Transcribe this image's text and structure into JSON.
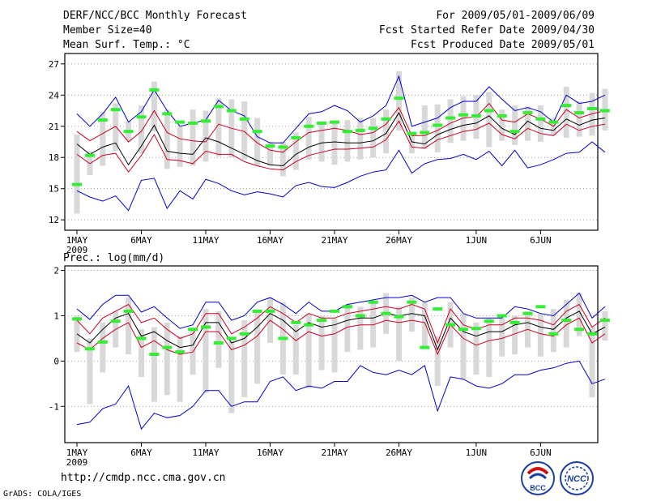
{
  "header": {
    "title": "DERF/NCC/BCC Monthly Forecast",
    "member_size": "Member Size=40",
    "variable": "Mean Surf. Temp.: °C",
    "period": "For 2009/05/01-2009/06/09",
    "refer_date": "Fcst Started Refer Date 2009/04/30",
    "produced_date": "Fcst Produced Date 2009/05/01"
  },
  "footer": {
    "url": "http://cmdp.ncc.cma.gov.cn",
    "credit": "GrADS: COLA/IGES",
    "logo_left_text": "BCC",
    "logo_right_text": "NCC"
  },
  "colors": {
    "envelope": "#0000cc",
    "spread": "#cc0022",
    "mean": "#000000",
    "box": "#d8d8d8",
    "obs": "#33ee33"
  },
  "chart_data": [
    {
      "type": "line",
      "title": "Mean Surf. Temp.: °C",
      "x_start_day": 1,
      "x_tick_labels": [
        "1MAY",
        "6MAY",
        "11MAY",
        "16MAY",
        "21MAY",
        "26MAY",
        "1JUN",
        "6JUN"
      ],
      "x_tick_days": [
        1,
        6,
        11,
        16,
        21,
        26,
        32,
        37
      ],
      "year_label": "2009",
      "ylim": [
        11,
        28
      ],
      "y_ticks": [
        12,
        15,
        18,
        21,
        24,
        27
      ],
      "y_tick_labels": [
        "12",
        "15",
        "18",
        "21",
        "24",
        "27"
      ],
      "series": [
        {
          "name": "max",
          "values": [
            22.2,
            21.0,
            22.2,
            23.8,
            21.4,
            22.4,
            24.5,
            22.5,
            21.0,
            21.3,
            21.6,
            23.5,
            22.5,
            22.0,
            20.0,
            19.4,
            19.4,
            20.8,
            22.2,
            22.4,
            23.0,
            22.5,
            21.4,
            22.0,
            23.0,
            25.8,
            21.0,
            21.4,
            21.8,
            22.8,
            23.4,
            23.4,
            24.8,
            23.6,
            22.5,
            22.8,
            22.4,
            21.4,
            24.0,
            23.2,
            23.4,
            24.0
          ]
        },
        {
          "name": "upper",
          "values": [
            20.5,
            19.6,
            20.3,
            21.0,
            19.5,
            20.5,
            22.5,
            20.4,
            19.8,
            19.6,
            19.5,
            21.2,
            20.8,
            20.5,
            19.4,
            18.7,
            18.5,
            19.5,
            20.4,
            20.6,
            20.8,
            20.6,
            20.2,
            20.4,
            21.2,
            22.8,
            20.1,
            20.1,
            20.6,
            21.3,
            21.8,
            21.9,
            23.2,
            21.6,
            21.4,
            22.2,
            21.7,
            21.0,
            22.6,
            21.8,
            22.2,
            22.5
          ]
        },
        {
          "name": "mean",
          "values": [
            19.3,
            18.3,
            19.0,
            19.4,
            17.3,
            19.1,
            21.1,
            18.6,
            18.4,
            18.3,
            19.9,
            19.5,
            18.9,
            18.3,
            17.7,
            17.3,
            17.2,
            18.3,
            19.0,
            19.4,
            19.5,
            19.4,
            19.4,
            19.6,
            20.3,
            22.3,
            19.5,
            19.3,
            20.2,
            20.7,
            21.1,
            21.3,
            22.0,
            20.8,
            20.2,
            21.5,
            20.8,
            20.6,
            21.7,
            21.1,
            21.6,
            21.8
          ]
        },
        {
          "name": "lower",
          "values": [
            18.3,
            17.4,
            18.2,
            18.4,
            16.6,
            18.2,
            20.2,
            17.8,
            17.7,
            17.4,
            18.6,
            18.3,
            18.3,
            17.6,
            17.2,
            16.9,
            16.8,
            17.6,
            18.2,
            18.5,
            18.8,
            18.8,
            18.9,
            19.0,
            19.7,
            21.5,
            19.0,
            18.9,
            19.7,
            20.1,
            20.5,
            20.7,
            21.3,
            20.2,
            19.8,
            20.8,
            20.3,
            20.1,
            21.2,
            20.6,
            21.0,
            21.2
          ]
        },
        {
          "name": "min",
          "values": [
            14.8,
            14.2,
            13.8,
            14.3,
            12.9,
            15.8,
            16.0,
            13.1,
            14.8,
            14.0,
            15.9,
            15.5,
            14.8,
            14.4,
            14.7,
            14.5,
            14.2,
            15.3,
            15.6,
            15.2,
            15.1,
            15.6,
            16.2,
            16.6,
            16.8,
            18.7,
            16.5,
            17.4,
            17.8,
            17.9,
            18.3,
            17.8,
            18.6,
            17.2,
            18.7,
            17.0,
            17.3,
            17.8,
            18.4,
            18.5,
            19.5,
            18.5
          ]
        }
      ],
      "ensemble_boxes": [
        [
          12.6,
          20.2
        ],
        [
          16.3,
          18.6
        ],
        [
          17.2,
          22.4
        ],
        [
          18.6,
          23.2
        ],
        [
          19.6,
          21.5
        ],
        [
          18.4,
          23.0
        ],
        [
          20.5,
          25.3
        ],
        [
          16.9,
          22.6
        ],
        [
          17.1,
          20.9
        ],
        [
          17.2,
          22.6
        ],
        [
          17.6,
          22.5
        ],
        [
          18.1,
          23.7
        ],
        [
          18.0,
          23.6
        ],
        [
          17.8,
          23.4
        ],
        [
          17.2,
          21.8
        ],
        [
          17.2,
          19.5
        ],
        [
          16.2,
          19.5
        ],
        [
          16.8,
          20.4
        ],
        [
          17.8,
          21.9
        ],
        [
          17.6,
          21.4
        ],
        [
          17.3,
          21.4
        ],
        [
          17.6,
          21.6
        ],
        [
          17.8,
          21.8
        ],
        [
          18.0,
          21.8
        ],
        [
          18.4,
          22.6
        ],
        [
          20.6,
          26.3
        ],
        [
          18.4,
          20.5
        ],
        [
          18.8,
          23.0
        ],
        [
          18.5,
          23.1
        ],
        [
          19.4,
          23.6
        ],
        [
          19.6,
          23.9
        ],
        [
          19.8,
          24.0
        ],
        [
          19.0,
          24.3
        ],
        [
          19.6,
          22.6
        ],
        [
          19.2,
          23.0
        ],
        [
          19.6,
          22.9
        ],
        [
          19.5,
          23.0
        ],
        [
          20.2,
          21.8
        ],
        [
          19.9,
          24.8
        ],
        [
          20.0,
          23.4
        ],
        [
          20.1,
          24.2
        ],
        [
          20.6,
          24.6
        ]
      ],
      "observed": [
        15.4,
        18.2,
        21.6,
        22.6,
        20.5,
        21.9,
        24.5,
        22.2,
        21.4,
        21.3,
        21.5,
        22.9,
        22.5,
        21.7,
        20.5,
        19.1,
        19.0,
        19.9,
        21.0,
        21.3,
        21.4,
        20.5,
        20.6,
        20.8,
        21.7,
        23.7,
        20.3,
        20.4,
        21.1,
        21.8,
        22.1,
        22.0,
        22.5,
        22.0,
        20.5,
        22.3,
        21.7,
        21.4,
        23.0,
        22.3,
        22.7,
        22.5
      ]
    },
    {
      "type": "line",
      "title": "Prec.: log(mm/d)",
      "x_start_day": 1,
      "x_tick_labels": [
        "1MAY",
        "6MAY",
        "11MAY",
        "16MAY",
        "21MAY",
        "26MAY",
        "1JUN",
        "6JUN"
      ],
      "x_tick_days": [
        1,
        6,
        11,
        16,
        21,
        26,
        32,
        37
      ],
      "year_label": "2009",
      "ylim": [
        -1.8,
        2.1
      ],
      "y_ticks": [
        -1,
        0,
        1,
        2
      ],
      "y_tick_labels": [
        "-1",
        "0",
        "1",
        "2"
      ],
      "series": [
        {
          "name": "max",
          "values": [
            1.15,
            0.92,
            1.25,
            1.45,
            1.45,
            1.08,
            1.2,
            0.95,
            0.72,
            0.8,
            1.3,
            1.3,
            0.9,
            1.0,
            1.3,
            1.4,
            1.25,
            1.05,
            1.3,
            1.1,
            1.1,
            1.25,
            1.3,
            1.35,
            1.4,
            1.4,
            1.45,
            1.3,
            1.4,
            1.4,
            1.05,
            0.95,
            0.95,
            0.95,
            1.2,
            1.15,
            1.05,
            1.0,
            1.25,
            1.5,
            0.95,
            1.2
          ]
        },
        {
          "name": "upper",
          "values": [
            0.9,
            0.6,
            0.95,
            1.1,
            1.25,
            0.85,
            0.95,
            0.7,
            0.5,
            0.6,
            1.05,
            1.05,
            0.6,
            0.75,
            0.95,
            1.2,
            1.05,
            0.85,
            1.05,
            0.95,
            0.95,
            1.05,
            1.1,
            1.15,
            1.2,
            1.15,
            1.25,
            1.15,
            0.4,
            1.15,
            0.8,
            0.7,
            0.8,
            0.8,
            0.95,
            0.95,
            0.9,
            0.8,
            1.1,
            1.25,
            0.75,
            0.95
          ]
        },
        {
          "name": "mean",
          "values": [
            0.6,
            0.4,
            0.7,
            0.95,
            1.05,
            0.55,
            0.65,
            0.45,
            0.3,
            0.35,
            0.85,
            0.85,
            0.4,
            0.5,
            0.75,
            1.05,
            0.9,
            0.65,
            0.85,
            0.75,
            0.8,
            0.9,
            0.95,
            0.95,
            1.05,
            1.0,
            1.05,
            1.0,
            0.25,
            0.95,
            0.65,
            0.55,
            0.65,
            0.65,
            0.8,
            0.85,
            0.75,
            0.7,
            0.95,
            1.1,
            0.6,
            0.75
          ]
        },
        {
          "name": "lower",
          "values": [
            0.4,
            0.25,
            0.5,
            0.7,
            0.85,
            0.3,
            0.45,
            0.25,
            0.15,
            0.2,
            0.65,
            0.65,
            0.25,
            0.35,
            0.55,
            0.9,
            0.7,
            0.45,
            0.65,
            0.55,
            0.6,
            0.75,
            0.8,
            0.8,
            0.9,
            0.85,
            0.9,
            0.85,
            0.15,
            0.8,
            0.5,
            0.35,
            0.45,
            0.5,
            0.6,
            0.7,
            0.6,
            0.55,
            0.8,
            0.95,
            0.4,
            0.6
          ]
        },
        {
          "name": "min",
          "values": [
            -1.4,
            -1.35,
            -1.05,
            -0.95,
            -0.55,
            -1.5,
            -1.15,
            -1.25,
            -1.2,
            -1.0,
            -0.65,
            -0.65,
            -1.0,
            -0.9,
            -0.9,
            -0.45,
            -0.35,
            -0.65,
            -0.55,
            -0.6,
            -0.45,
            -0.45,
            -0.1,
            -0.25,
            -0.3,
            -0.2,
            -0.3,
            -0.1,
            -1.1,
            -0.35,
            -0.4,
            -0.55,
            -0.6,
            -0.5,
            -0.3,
            -0.3,
            -0.2,
            -0.15,
            -0.05,
            0.0,
            -0.5,
            -0.4
          ]
        }
      ],
      "ensemble_boxes": [
        [
          0.2,
          1.0
        ],
        [
          -0.95,
          0.5
        ],
        [
          -0.25,
          0.85
        ],
        [
          0.3,
          1.1
        ],
        [
          0.15,
          1.4
        ],
        [
          -0.35,
          0.7
        ],
        [
          -0.9,
          0.75
        ],
        [
          -0.75,
          0.85
        ],
        [
          -0.9,
          0.55
        ],
        [
          -0.3,
          0.7
        ],
        [
          -0.7,
          1.15
        ],
        [
          -0.15,
          1.1
        ],
        [
          -1.15,
          0.45
        ],
        [
          -0.8,
          0.9
        ],
        [
          -0.5,
          1.1
        ],
        [
          0.4,
          1.4
        ],
        [
          -0.3,
          1.3
        ],
        [
          -0.3,
          0.8
        ],
        [
          -0.6,
          1.05
        ],
        [
          -0.2,
          1.0
        ],
        [
          -0.25,
          0.95
        ],
        [
          0.2,
          1.25
        ],
        [
          0.25,
          1.2
        ],
        [
          0.3,
          1.3
        ],
        [
          0.6,
          1.5
        ],
        [
          0.0,
          1.2
        ],
        [
          0.65,
          1.4
        ],
        [
          0.3,
          1.3
        ],
        [
          -0.55,
          0.55
        ],
        [
          0.3,
          1.3
        ],
        [
          -0.4,
          1.05
        ],
        [
          -0.3,
          0.85
        ],
        [
          -0.35,
          0.95
        ],
        [
          0.1,
          0.95
        ],
        [
          0.15,
          1.0
        ],
        [
          0.3,
          1.1
        ],
        [
          0.1,
          1.05
        ],
        [
          0.2,
          1.15
        ],
        [
          0.3,
          1.35
        ],
        [
          0.55,
          1.5
        ],
        [
          -0.8,
          0.75
        ],
        [
          0.45,
          1.1
        ]
      ],
      "observed": [
        0.93,
        0.27,
        0.42,
        0.88,
        1.1,
        0.5,
        0.15,
        0.3,
        0.2,
        0.7,
        0.75,
        0.4,
        0.5,
        0.6,
        1.1,
        1.1,
        0.5,
        0.85,
        0.8,
        0.9,
        1.1,
        1.2,
        1.0,
        1.3,
        1.05,
        0.98,
        1.3,
        0.3,
        1.15,
        0.8,
        0.7,
        0.72,
        0.88,
        1.0,
        0.85,
        1.05,
        1.2,
        0.6,
        0.9,
        0.7,
        0.6,
        0.9
      ]
    }
  ]
}
